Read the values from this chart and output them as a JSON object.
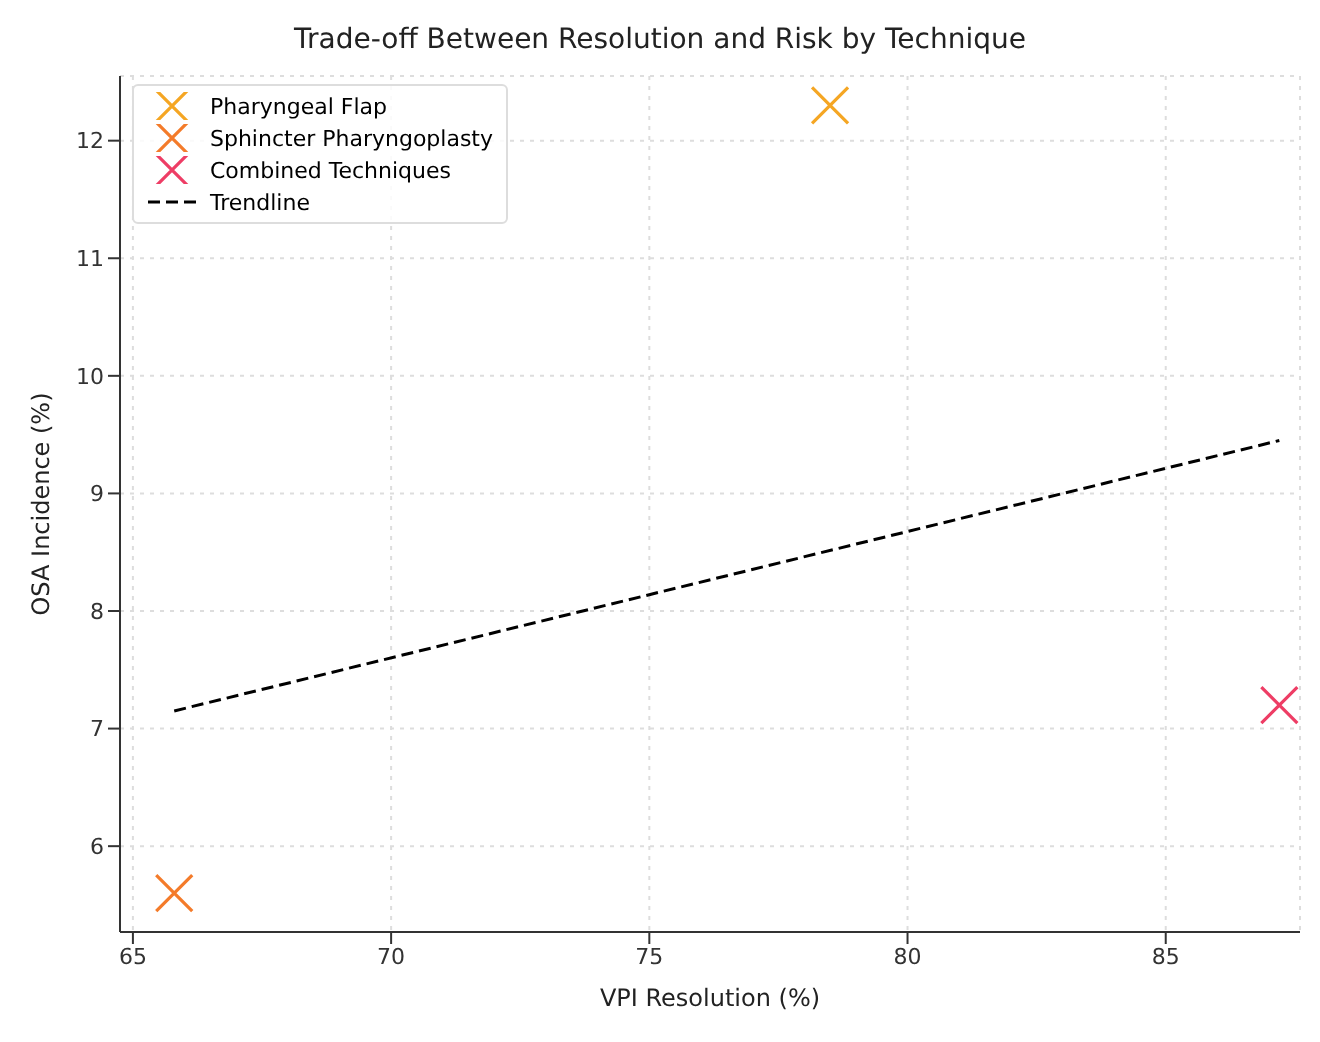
{
  "chart_data": {
    "type": "scatter",
    "title": "Trade-off Between Resolution and Risk by Technique",
    "xlabel": "VPI Resolution (%)",
    "ylabel": "OSA Incidence (%)",
    "series": [
      {
        "name": "Pharyngeal Flap",
        "color": "#f5a623",
        "x": [
          78.5
        ],
        "values": [
          12.3
        ]
      },
      {
        "name": "Sphincter Pharyngoplasty",
        "color": "#f47b2a",
        "x": [
          65.8
        ],
        "values": [
          5.6
        ]
      },
      {
        "name": "Combined Techniques",
        "color": "#ee3d65",
        "x": [
          87.2
        ],
        "values": [
          7.2
        ]
      },
      {
        "name": "Trendline",
        "type": "line",
        "color": "#000000",
        "line_style": "dashed",
        "marker": "none",
        "x": [
          65.8,
          87.2
        ],
        "values": [
          7.15,
          9.45
        ]
      }
    ],
    "xlim": [
      64.75,
      87.6
    ],
    "xticks": [
      65,
      70,
      75,
      80,
      85
    ],
    "ylim": [
      5.27,
      12.55
    ],
    "yticks": [
      6,
      7,
      8,
      9,
      10,
      11,
      12
    ],
    "grid": true,
    "legend": "top left",
    "marker": "cross"
  }
}
